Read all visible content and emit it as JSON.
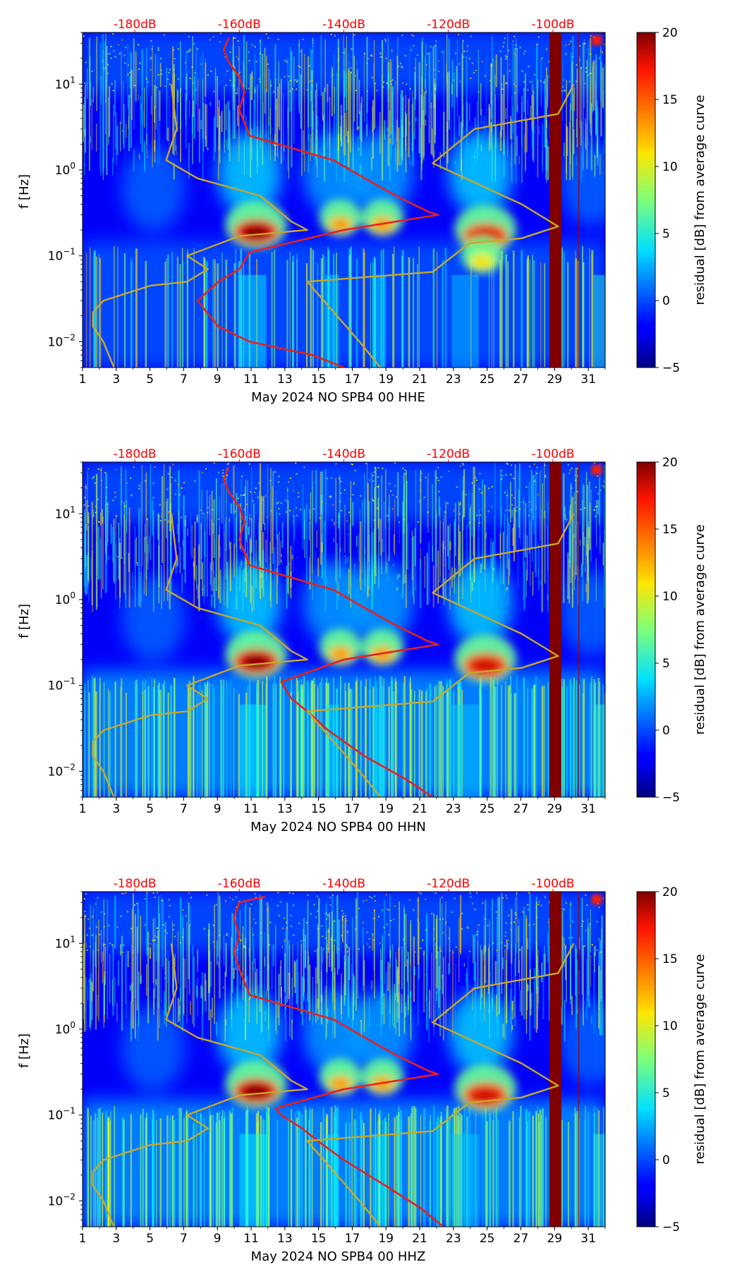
{
  "figure": {
    "colorbar_label": "residual [dB] from average curve",
    "ylabel": "f [Hz]",
    "db_label_color": "#ff0000",
    "red_curve_color": "#e8201c",
    "yellow_curve_color": "#c8a82a",
    "saturated_band_color": "#7f0000"
  },
  "chart_data": [
    {
      "type": "heatmap",
      "xlabel": "May 2024 NO SPB4 00 HHE",
      "ylabel": "f [Hz]",
      "x_ticks": [
        "1",
        "3",
        "5",
        "7",
        "9",
        "11",
        "13",
        "15",
        "17",
        "19",
        "21",
        "23",
        "25",
        "27",
        "29",
        "31"
      ],
      "x_range": [
        1,
        32
      ],
      "y_scale": "log",
      "y_range": [
        0.005,
        40
      ],
      "y_ticks": [
        "10^-2",
        "10^-1",
        "10^0",
        "10^1"
      ],
      "top_axis_labels": [
        "-180dB",
        "-160dB",
        "-140dB",
        "-120dB",
        "-100dB"
      ],
      "top_axis_db_values": [
        -180,
        -160,
        -140,
        -120,
        -100
      ],
      "colorbar": {
        "label": "residual [dB] from average curve",
        "range": [
          -5,
          20
        ],
        "ticks": [
          "-5",
          "0",
          "5",
          "10",
          "15",
          "20"
        ],
        "colormap": "jet"
      },
      "bright_patches": [
        {
          "day": 11.3,
          "freq": 0.19,
          "level": 20
        },
        {
          "day": 16.3,
          "freq": 0.23,
          "level": 14
        },
        {
          "day": 18.8,
          "freq": 0.23,
          "level": 14
        },
        {
          "day": 24.9,
          "freq": 0.17,
          "level": 18
        },
        {
          "day": 24.7,
          "freq": 0.085,
          "level": 12
        }
      ],
      "saturated_band_days": [
        28.7,
        29.4
      ],
      "series": [
        {
          "color": "red",
          "points": [
            [
              -162,
              35
            ],
            [
              -163,
              25
            ],
            [
              -162,
              18
            ],
            [
              -160,
              12
            ],
            [
              -159,
              8
            ],
            [
              -160,
              5
            ],
            [
              -158,
              2.5
            ],
            [
              -150,
              1.8
            ],
            [
              -142,
              1.3
            ],
            [
              -136,
              0.8
            ],
            [
              -130,
              0.5
            ],
            [
              -124,
              0.33
            ],
            [
              -122,
              0.3
            ],
            [
              -140,
              0.2
            ],
            [
              -158,
              0.11
            ],
            [
              -160,
              0.07
            ],
            [
              -164,
              0.05
            ],
            [
              -168,
              0.03
            ],
            [
              -164,
              0.015
            ],
            [
              -158,
              0.01
            ],
            [
              -146,
              0.007
            ],
            [
              -140,
              0.005
            ]
          ]
        },
        {
          "color": "yellow",
          "points": [
            [
              -173,
              10
            ],
            [
              -172,
              3
            ],
            [
              -174,
              1.3
            ],
            [
              -168,
              0.8
            ],
            [
              -156,
              0.5
            ],
            [
              -150,
              0.25
            ],
            [
              -147,
              0.2
            ],
            [
              -160,
              0.17
            ],
            [
              -170,
              0.1
            ],
            [
              -166,
              0.07
            ],
            [
              -170,
              0.05
            ],
            [
              -177,
              0.045
            ],
            [
              -186,
              0.03
            ],
            [
              -188,
              0.022
            ],
            [
              -188,
              0.015
            ],
            [
              -186,
              0.01
            ],
            [
              -184,
              0.005
            ]
          ]
        },
        {
          "color": "yellow",
          "points": [
            [
              -96,
              10
            ],
            [
              -99,
              4.5
            ],
            [
              -115,
              3
            ],
            [
              -123,
              1.2
            ],
            [
              -106,
              0.4
            ],
            [
              -99,
              0.22
            ],
            [
              -106,
              0.16
            ],
            [
              -116,
              0.14
            ],
            [
              -123,
              0.065
            ],
            [
              -147,
              0.05
            ],
            [
              -137,
              0.01
            ],
            [
              -133,
              0.005
            ]
          ]
        }
      ]
    },
    {
      "type": "heatmap",
      "xlabel": "May 2024 NO SPB4 00 HHN",
      "ylabel": "f [Hz]",
      "x_ticks": [
        "1",
        "3",
        "5",
        "7",
        "9",
        "11",
        "13",
        "15",
        "17",
        "19",
        "21",
        "23",
        "25",
        "27",
        "29",
        "31"
      ],
      "x_range": [
        1,
        32
      ],
      "y_scale": "log",
      "y_range": [
        0.005,
        40
      ],
      "y_ticks": [
        "10^-2",
        "10^-1",
        "10^0",
        "10^1"
      ],
      "top_axis_labels": [
        "-180dB",
        "-160dB",
        "-140dB",
        "-120dB",
        "-100dB"
      ],
      "top_axis_db_values": [
        -180,
        -160,
        -140,
        -120,
        -100
      ],
      "colorbar": {
        "label": "residual [dB] from average curve",
        "range": [
          -5,
          20
        ],
        "ticks": [
          "-5",
          "0",
          "5",
          "10",
          "15",
          "20"
        ],
        "colormap": "jet"
      },
      "bright_patches": [
        {
          "day": 11.3,
          "freq": 0.19,
          "level": 20
        },
        {
          "day": 16.3,
          "freq": 0.23,
          "level": 14
        },
        {
          "day": 18.8,
          "freq": 0.23,
          "level": 14
        },
        {
          "day": 24.9,
          "freq": 0.17,
          "level": 18
        }
      ],
      "saturated_band_days": [
        28.7,
        29.4
      ],
      "series": [
        {
          "color": "red",
          "points": [
            [
              -162,
              35
            ],
            [
              -163,
              25
            ],
            [
              -162,
              18
            ],
            [
              -160,
              12
            ],
            [
              -159,
              8
            ],
            [
              -160,
              5
            ],
            [
              -158,
              2.5
            ],
            [
              -150,
              1.8
            ],
            [
              -142,
              1.3
            ],
            [
              -136,
              0.8
            ],
            [
              -130,
              0.5
            ],
            [
              -124,
              0.33
            ],
            [
              -122,
              0.3
            ],
            [
              -140,
              0.2
            ],
            [
              -152,
              0.11
            ],
            [
              -150,
              0.07
            ],
            [
              -147,
              0.05
            ],
            [
              -143,
              0.03
            ],
            [
              -136,
              0.015
            ],
            [
              -128,
              0.008
            ],
            [
              -123,
              0.005
            ]
          ]
        },
        {
          "color": "yellow",
          "points": [
            [
              -173,
              10
            ],
            [
              -172,
              3
            ],
            [
              -174,
              1.3
            ],
            [
              -168,
              0.8
            ],
            [
              -156,
              0.5
            ],
            [
              -150,
              0.25
            ],
            [
              -147,
              0.2
            ],
            [
              -160,
              0.17
            ],
            [
              -170,
              0.1
            ],
            [
              -166,
              0.07
            ],
            [
              -170,
              0.05
            ],
            [
              -177,
              0.045
            ],
            [
              -186,
              0.03
            ],
            [
              -188,
              0.022
            ],
            [
              -188,
              0.015
            ],
            [
              -186,
              0.01
            ],
            [
              -184,
              0.005
            ]
          ]
        },
        {
          "color": "yellow",
          "points": [
            [
              -96,
              10
            ],
            [
              -99,
              4.5
            ],
            [
              -115,
              3
            ],
            [
              -123,
              1.2
            ],
            [
              -106,
              0.4
            ],
            [
              -99,
              0.22
            ],
            [
              -106,
              0.16
            ],
            [
              -116,
              0.14
            ],
            [
              -123,
              0.065
            ],
            [
              -147,
              0.05
            ],
            [
              -137,
              0.01
            ],
            [
              -133,
              0.005
            ]
          ]
        }
      ]
    },
    {
      "type": "heatmap",
      "xlabel": "May 2024 NO SPB4 00 HHZ",
      "ylabel": "f [Hz]",
      "x_ticks": [
        "1",
        "3",
        "5",
        "7",
        "9",
        "11",
        "13",
        "15",
        "17",
        "19",
        "21",
        "23",
        "25",
        "27",
        "29",
        "31"
      ],
      "x_range": [
        1,
        32
      ],
      "y_scale": "log",
      "y_range": [
        0.005,
        40
      ],
      "y_ticks": [
        "10^-2",
        "10^-1",
        "10^0",
        "10^1"
      ],
      "top_axis_labels": [
        "-180dB",
        "-160dB",
        "-140dB",
        "-120dB",
        "-100dB"
      ],
      "top_axis_db_values": [
        -180,
        -160,
        -140,
        -120,
        -100
      ],
      "colorbar": {
        "label": "residual [dB] from average curve",
        "range": [
          -5,
          20
        ],
        "ticks": [
          "-5",
          "0",
          "5",
          "10",
          "15",
          "20"
        ],
        "colormap": "jet"
      },
      "bright_patches": [
        {
          "day": 11.3,
          "freq": 0.19,
          "level": 20
        },
        {
          "day": 16.3,
          "freq": 0.23,
          "level": 14
        },
        {
          "day": 18.8,
          "freq": 0.23,
          "level": 14
        },
        {
          "day": 24.9,
          "freq": 0.17,
          "level": 18
        }
      ],
      "saturated_band_days": [
        28.7,
        29.4
      ],
      "series": [
        {
          "color": "red",
          "points": [
            [
              -155,
              35
            ],
            [
              -160,
              30
            ],
            [
              -161,
              20
            ],
            [
              -160,
              12
            ],
            [
              -161,
              8
            ],
            [
              -160,
              5
            ],
            [
              -158,
              2.5
            ],
            [
              -150,
              1.8
            ],
            [
              -142,
              1.3
            ],
            [
              -136,
              0.8
            ],
            [
              -130,
              0.5
            ],
            [
              -124,
              0.33
            ],
            [
              -122,
              0.3
            ],
            [
              -140,
              0.2
            ],
            [
              -153,
              0.12
            ],
            [
              -152,
              0.1
            ],
            [
              -148,
              0.07
            ],
            [
              -145,
              0.05
            ],
            [
              -140,
              0.03
            ],
            [
              -132,
              0.015
            ],
            [
              -125,
              0.008
            ],
            [
              -121,
              0.005
            ]
          ]
        },
        {
          "color": "yellow",
          "points": [
            [
              -173,
              10
            ],
            [
              -172,
              3
            ],
            [
              -174,
              1.3
            ],
            [
              -168,
              0.8
            ],
            [
              -156,
              0.5
            ],
            [
              -150,
              0.25
            ],
            [
              -147,
              0.2
            ],
            [
              -160,
              0.17
            ],
            [
              -170,
              0.1
            ],
            [
              -166,
              0.07
            ],
            [
              -170,
              0.05
            ],
            [
              -177,
              0.045
            ],
            [
              -186,
              0.03
            ],
            [
              -188,
              0.022
            ],
            [
              -188,
              0.015
            ],
            [
              -186,
              0.01
            ],
            [
              -184,
              0.005
            ]
          ]
        },
        {
          "color": "yellow",
          "points": [
            [
              -96,
              10
            ],
            [
              -99,
              4.5
            ],
            [
              -115,
              3
            ],
            [
              -123,
              1.2
            ],
            [
              -106,
              0.4
            ],
            [
              -99,
              0.22
            ],
            [
              -106,
              0.16
            ],
            [
              -116,
              0.14
            ],
            [
              -123,
              0.065
            ],
            [
              -147,
              0.05
            ],
            [
              -137,
              0.01
            ],
            [
              -133,
              0.005
            ]
          ]
        }
      ]
    }
  ]
}
